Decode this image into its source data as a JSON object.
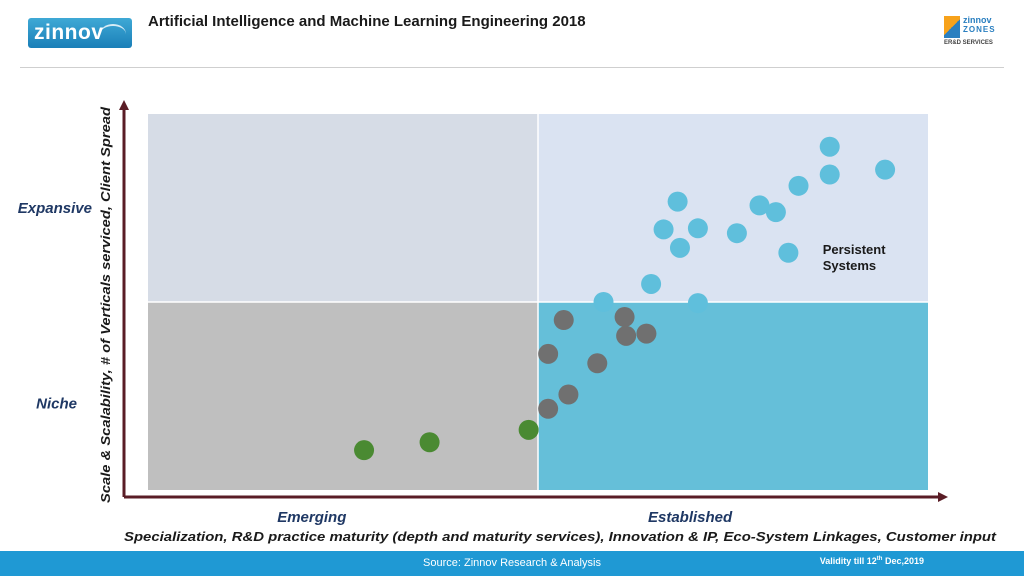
{
  "header": {
    "logo_text": "zinnov",
    "title": "Artificial Intelligence and Machine Learning Engineering 2018",
    "zones_logo": {
      "line1": "zinnov",
      "line2": "ZONES",
      "line3": "ER&D SERVICES"
    }
  },
  "footer": {
    "source": "Source: Zinnov Research & Analysis",
    "validity_prefix": "Validity till 12",
    "validity_sup": "th",
    "validity_suffix": " Dec,2019"
  },
  "colors": {
    "q_top_left": "#d6dce6",
    "q_top_right": "#dae3f2",
    "q_bottom_left": "#bfbfbf",
    "q_bottom_right": "#65bfd9",
    "axis": "#5a1d26",
    "label": "#1f3864",
    "dot_blue": "#5fbfdc",
    "dot_gray": "#707070",
    "dot_green": "#4a8a32"
  },
  "chart_data": {
    "type": "scatter",
    "title": "Artificial Intelligence and Machine Learning Engineering 2018",
    "xlabel": "Specialization, R&D practice maturity (depth and maturity services), Innovation & IP,  Eco-System Linkages, Customer input",
    "ylabel": "Scale & Scalability, # of Verticals serviced, Client Spread",
    "x_quadrant_labels": [
      "Emerging",
      "Established"
    ],
    "y_quadrant_labels": [
      "Niche",
      "Expansive"
    ],
    "xlim": [
      0,
      100
    ],
    "ylim": [
      0,
      100
    ],
    "midpoint": {
      "x": 50,
      "y": 50
    },
    "grid": false,
    "legend": "none",
    "series": [
      {
        "color": "blue",
        "points": [
          {
            "x": 87.4,
            "y": 91.3
          },
          {
            "x": 94.5,
            "y": 85.2
          },
          {
            "x": 87.4,
            "y": 83.9
          },
          {
            "x": 83.4,
            "y": 80.9
          },
          {
            "x": 78.4,
            "y": 75.7
          },
          {
            "x": 67.9,
            "y": 76.7
          },
          {
            "x": 70.5,
            "y": 69.6
          },
          {
            "x": 75.5,
            "y": 68.3
          },
          {
            "x": 66.1,
            "y": 69.3
          },
          {
            "x": 80.5,
            "y": 73.9
          },
          {
            "x": 82.1,
            "y": 63.1
          },
          {
            "x": 68.2,
            "y": 64.4
          },
          {
            "x": 64.5,
            "y": 54.8
          },
          {
            "x": 70.5,
            "y": 49.7
          },
          {
            "x": 58.4,
            "y": 50.0
          }
        ]
      },
      {
        "color": "gray",
        "points": [
          {
            "x": 61.1,
            "y": 46.0
          },
          {
            "x": 53.3,
            "y": 45.2
          },
          {
            "x": 63.9,
            "y": 41.6
          },
          {
            "x": 61.3,
            "y": 41.0
          },
          {
            "x": 51.3,
            "y": 36.2
          },
          {
            "x": 57.6,
            "y": 33.7
          },
          {
            "x": 53.9,
            "y": 25.4
          },
          {
            "x": 51.3,
            "y": 21.6
          }
        ]
      },
      {
        "color": "green",
        "points": [
          {
            "x": 48.8,
            "y": 16.0
          },
          {
            "x": 36.1,
            "y": 12.7
          },
          {
            "x": 27.7,
            "y": 10.6
          }
        ]
      }
    ],
    "annotations": [
      {
        "text": "Persistent",
        "x": 86.5,
        "y": 62.8
      },
      {
        "text": "Systems",
        "x": 86.5,
        "y": 58.5
      }
    ]
  }
}
